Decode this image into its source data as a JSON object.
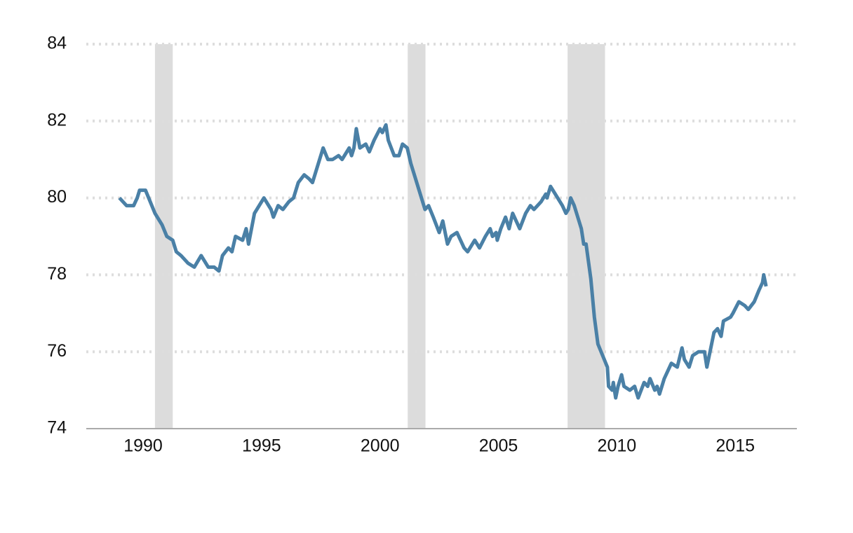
{
  "chart_data": {
    "type": "line",
    "x": [
      1989.0,
      1989.3,
      1989.6,
      1989.75,
      1989.85,
      1990.1,
      1990.3,
      1990.5,
      1990.8,
      1991.0,
      1991.25,
      1991.4,
      1991.6,
      1991.9,
      1992.16,
      1992.45,
      1992.75,
      1993.0,
      1993.2,
      1993.35,
      1993.6,
      1993.75,
      1993.9,
      1994.2,
      1994.35,
      1994.45,
      1994.7,
      1994.9,
      1995.1,
      1995.4,
      1995.5,
      1995.7,
      1995.9,
      1996.15,
      1996.35,
      1996.55,
      1996.8,
      1997.0,
      1997.15,
      1997.3,
      1997.6,
      1997.8,
      1998.0,
      1998.25,
      1998.4,
      1998.7,
      1998.8,
      1998.9,
      1999.0,
      1999.15,
      1999.4,
      1999.55,
      1999.75,
      2000.0,
      2000.1,
      2000.25,
      2000.35,
      2000.6,
      2000.8,
      2000.95,
      2001.15,
      2001.3,
      2001.45,
      2001.65,
      2001.9,
      2002.05,
      2002.25,
      2002.5,
      2002.65,
      2002.85,
      2003.0,
      2003.25,
      2003.55,
      2003.7,
      2004.0,
      2004.2,
      2004.45,
      2004.65,
      2004.75,
      2004.9,
      2004.95,
      2005.1,
      2005.3,
      2005.45,
      2005.6,
      2005.9,
      2006.15,
      2006.35,
      2006.5,
      2006.8,
      2007.0,
      2007.05,
      2007.2,
      2007.5,
      2007.7,
      2007.85,
      2007.95,
      2008.05,
      2008.2,
      2008.35,
      2008.5,
      2008.6,
      2008.7,
      2008.9,
      2009.05,
      2009.2,
      2009.4,
      2009.6,
      2009.65,
      2009.8,
      2009.85,
      2009.95,
      2010.05,
      2010.2,
      2010.3,
      2010.55,
      2010.75,
      2010.9,
      2011.15,
      2011.3,
      2011.4,
      2011.6,
      2011.7,
      2011.8,
      2012.0,
      2012.15,
      2012.3,
      2012.55,
      2012.75,
      2012.85,
      2013.05,
      2013.2,
      2013.45,
      2013.7,
      2013.8,
      2014.0,
      2014.1,
      2014.25,
      2014.4,
      2014.5,
      2014.8,
      2014.9,
      2015.15,
      2015.4,
      2015.55,
      2015.8,
      2016.0,
      2016.15,
      2016.2,
      2016.3
    ],
    "series": [
      {
        "color": "#4a80a6",
        "values": [
          80.0,
          79.8,
          79.8,
          80.0,
          80.2,
          80.2,
          79.9,
          79.6,
          79.3,
          79.0,
          78.9,
          78.6,
          78.5,
          78.3,
          78.2,
          78.5,
          78.2,
          78.2,
          78.1,
          78.5,
          78.7,
          78.6,
          79.0,
          78.9,
          79.2,
          78.8,
          79.6,
          79.8,
          80.0,
          79.7,
          79.5,
          79.8,
          79.7,
          79.9,
          80.0,
          80.4,
          80.6,
          80.5,
          80.4,
          80.7,
          81.3,
          81.0,
          81.0,
          81.1,
          81.0,
          81.3,
          81.1,
          81.3,
          81.8,
          81.3,
          81.4,
          81.2,
          81.5,
          81.8,
          81.7,
          81.9,
          81.5,
          81.1,
          81.1,
          81.4,
          81.3,
          80.9,
          80.6,
          80.2,
          79.7,
          79.8,
          79.5,
          79.1,
          79.4,
          78.8,
          79.0,
          79.1,
          78.7,
          78.6,
          78.9,
          78.7,
          79.0,
          79.2,
          79.0,
          79.1,
          78.9,
          79.2,
          79.5,
          79.2,
          79.6,
          79.2,
          79.6,
          79.8,
          79.7,
          79.9,
          80.1,
          80.0,
          80.3,
          80.0,
          79.8,
          79.6,
          79.7,
          80.0,
          79.8,
          79.5,
          79.2,
          78.8,
          78.8,
          77.9,
          76.9,
          76.2,
          75.9,
          75.6,
          75.1,
          75.0,
          75.2,
          74.8,
          75.1,
          75.4,
          75.1,
          75.0,
          75.1,
          74.8,
          75.2,
          75.1,
          75.3,
          75.0,
          75.1,
          74.9,
          75.3,
          75.5,
          75.7,
          75.6,
          76.1,
          75.8,
          75.6,
          75.9,
          76.0,
          76.0,
          75.6,
          76.2,
          76.5,
          76.6,
          76.4,
          76.8,
          76.9,
          77.0,
          77.3,
          77.2,
          77.1,
          77.3,
          77.6,
          77.8,
          78.0,
          77.7
        ]
      }
    ],
    "shaded_ranges": [
      [
        1990.5,
        1991.25
      ],
      [
        2001.17,
        2001.92
      ],
      [
        2007.92,
        2009.5
      ]
    ],
    "shade_color": "#dcdcdc",
    "xlim": [
      1987.6,
      2017.6
    ],
    "xticks": [
      1990,
      1995,
      2000,
      2005,
      2010,
      2015
    ],
    "ylim": [
      74,
      84
    ],
    "yticks": [
      74,
      76,
      78,
      80,
      82,
      84
    ],
    "grid": true
  }
}
